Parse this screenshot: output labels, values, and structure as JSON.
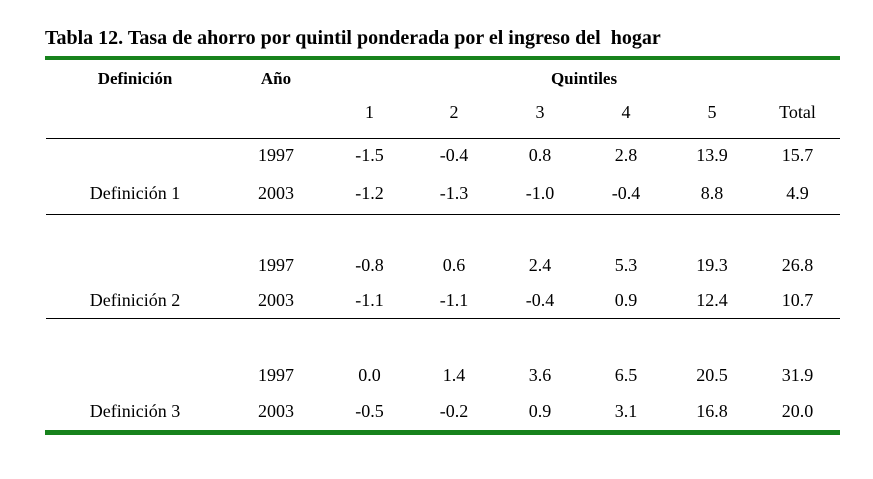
{
  "page": {
    "title": "Tabla 12. Tasa de ahorro por quintil ponderada por el ingreso del  hogar"
  },
  "table": {
    "headers": {
      "definition": "Definición",
      "year": "Año",
      "quintiles": "Quintiles",
      "columns": [
        "1",
        "2",
        "3",
        "4",
        "5",
        "Total"
      ]
    },
    "groups": [
      {
        "definition": "Definición 1",
        "rows": [
          {
            "year": "1997",
            "values": [
              "-1.5",
              "-0.4",
              "0.8",
              "2.8",
              "13.9",
              "15.7"
            ]
          },
          {
            "year": "2003",
            "values": [
              "-1.2",
              "-1.3",
              "-1.0",
              "-0.4",
              "8.8",
              "4.9"
            ]
          }
        ]
      },
      {
        "definition": "Definición 2",
        "rows": [
          {
            "year": "1997",
            "values": [
              "-0.8",
              "0.6",
              "2.4",
              "5.3",
              "19.3",
              "26.8"
            ]
          },
          {
            "year": "2003",
            "values": [
              "-1.1",
              "-1.1",
              "-0.4",
              "0.9",
              "12.4",
              "10.7"
            ]
          }
        ]
      },
      {
        "definition": "Definición 3",
        "rows": [
          {
            "year": "1997",
            "values": [
              "0.0",
              "1.4",
              "3.6",
              "6.5",
              "20.5",
              "31.9"
            ]
          },
          {
            "year": "2003",
            "values": [
              "-0.5",
              "-0.2",
              "0.9",
              "3.1",
              "16.8",
              "20.0"
            ]
          }
        ]
      }
    ]
  },
  "colors": {
    "accent_green": "#17821c",
    "rule_black": "#000000",
    "text": "#000000",
    "background": "#ffffff"
  }
}
